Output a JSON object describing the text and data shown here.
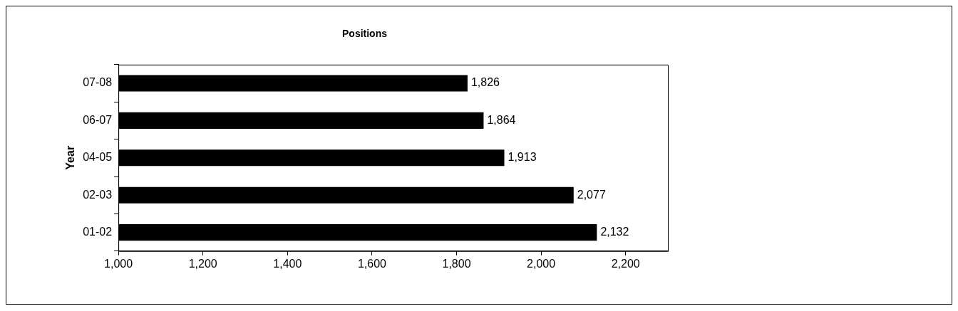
{
  "chart_data": {
    "type": "bar",
    "orientation": "horizontal",
    "title": "Positions",
    "ylabel": "Year",
    "categories": [
      "07-08",
      "06-07",
      "04-05",
      "02-03",
      "01-02"
    ],
    "values": [
      1826,
      1864,
      1913,
      2077,
      2132
    ],
    "color": "#000000",
    "value_labels": [
      "1,826",
      "1,864",
      "1,913",
      "2,077",
      "2,132"
    ],
    "xlim": [
      1000,
      2300
    ],
    "xticks": [
      {
        "value": 1000,
        "label": "1,000"
      },
      {
        "value": 1200,
        "label": "1,200"
      },
      {
        "value": 1400,
        "label": "1,400"
      },
      {
        "value": 1600,
        "label": "1,600"
      },
      {
        "value": 1800,
        "label": "1,800"
      },
      {
        "value": 2000,
        "label": "2,000"
      },
      {
        "value": 2200,
        "label": "2,200"
      }
    ],
    "grid": false,
    "legend": false
  }
}
